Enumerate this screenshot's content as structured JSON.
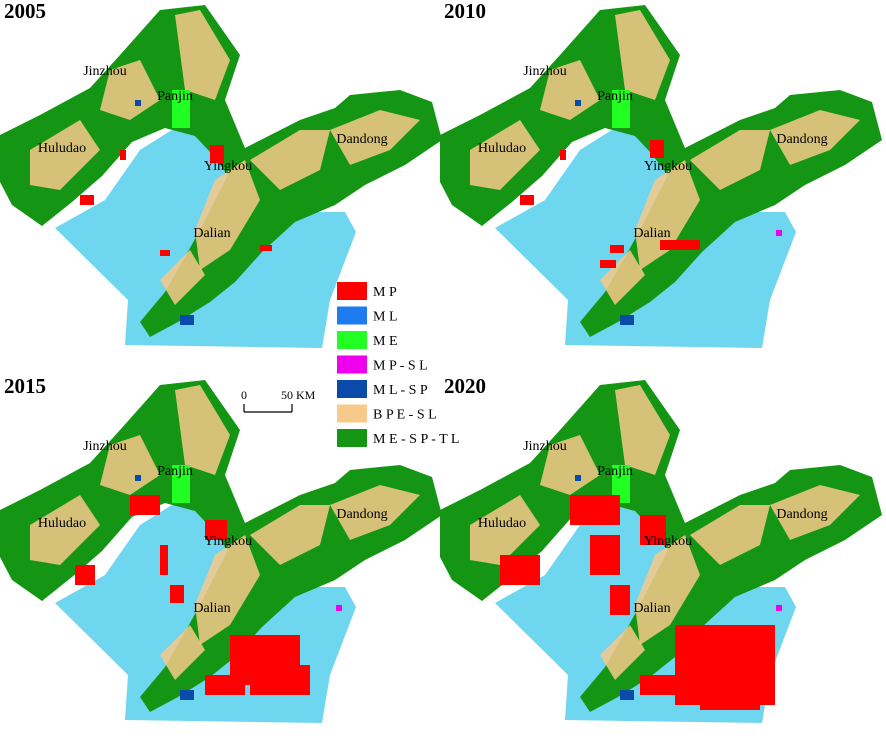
{
  "panels": [
    {
      "year": "2005",
      "cities": [
        "Jinzhou",
        "Panjin",
        "Huludao",
        "Yingkou",
        "Dandong",
        "Dalian"
      ]
    },
    {
      "year": "2010",
      "cities": [
        "Jinzhou",
        "Panjin",
        "Huludao",
        "Yingkou",
        "Dandong",
        "Dalian"
      ]
    },
    {
      "year": "2015",
      "cities": [
        "Jinzhou",
        "Panjin",
        "Huludao",
        "Yingkou",
        "Dandong",
        "Dalian"
      ]
    },
    {
      "year": "2020",
      "cities": [
        "Jinzhou",
        "Panjin",
        "Huludao",
        "Yingkou",
        "Dandong",
        "Dalian"
      ]
    }
  ],
  "legend": [
    {
      "label": "M P",
      "color": "#ff0000"
    },
    {
      "label": "M L",
      "color": "#1e7bf0"
    },
    {
      "label": "M E",
      "color": "#22ff22"
    },
    {
      "label": "M P - S L",
      "color": "#ee00ee"
    },
    {
      "label": "M L - S P",
      "color": "#0a4aa8"
    },
    {
      "label": "B P E - S L",
      "color": "#f7c98a"
    },
    {
      "label": "M E - S P - T L",
      "color": "#149614"
    }
  ],
  "scale_bar": {
    "start": "0",
    "end": "50 KM"
  }
}
